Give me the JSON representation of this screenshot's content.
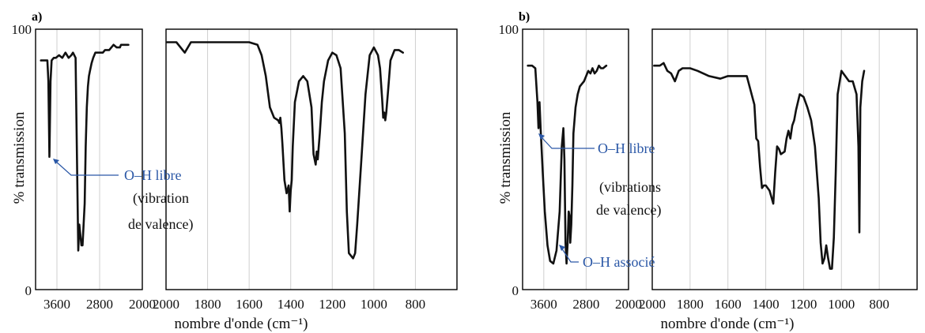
{
  "chart_data": [
    {
      "panel_label": "a)",
      "type": "line",
      "ylabel": "% transmission",
      "xlabel": "nombre d'onde (cm⁻¹)",
      "ylim": [
        0,
        100
      ],
      "y_ticks": [
        "100",
        "0"
      ],
      "grid": true,
      "segments": [
        {
          "xlim": [
            4000,
            2000
          ],
          "tick_labels": [
            "3600",
            "2800",
            "2000"
          ],
          "x": [
            3900,
            3850,
            3780,
            3760,
            3740,
            3720,
            3700,
            3660,
            3620,
            3560,
            3500,
            3440,
            3380,
            3330,
            3300,
            3250,
            3200,
            3180,
            3140,
            3120,
            3080,
            3060,
            3040,
            3020,
            3000,
            2980,
            2950,
            2920,
            2880,
            2850,
            2800,
            2780,
            2740,
            2700,
            2620,
            2540,
            2480,
            2420,
            2400,
            2340,
            2260
          ],
          "y": [
            88,
            88,
            88,
            80,
            51,
            80,
            88,
            89,
            89,
            90,
            89,
            91,
            89,
            90,
            91,
            89,
            15,
            25,
            17,
            17,
            33,
            55,
            70,
            78,
            82,
            84,
            87,
            89,
            91,
            91,
            91,
            91,
            91,
            92,
            92,
            94,
            93,
            93,
            94,
            94,
            94
          ]
        },
        {
          "xlim": [
            2000,
            600
          ],
          "tick_labels": [
            "2000",
            "1800",
            "1600",
            "1400",
            "1200",
            "1000",
            "800"
          ],
          "x": [
            1995,
            1950,
            1910,
            1880,
            1850,
            1800,
            1700,
            1600,
            1560,
            1540,
            1520,
            1500,
            1480,
            1460,
            1455,
            1450,
            1445,
            1440,
            1430,
            1420,
            1410,
            1405,
            1400,
            1395,
            1390,
            1380,
            1360,
            1340,
            1320,
            1300,
            1290,
            1280,
            1275,
            1270,
            1260,
            1250,
            1240,
            1220,
            1200,
            1180,
            1160,
            1140,
            1130,
            1120,
            1110,
            1100,
            1090,
            1080,
            1060,
            1040,
            1020,
            1000,
            980,
            970,
            960,
            955,
            950,
            945,
            940,
            930,
            920,
            900,
            880,
            860
          ],
          "y": [
            95,
            95,
            91,
            95,
            95,
            95,
            95,
            95,
            94,
            90,
            82,
            70,
            66,
            65,
            64,
            66,
            62,
            56,
            42,
            37,
            40,
            30,
            38,
            42,
            55,
            72,
            80,
            82,
            80,
            70,
            52,
            48,
            53,
            50,
            60,
            72,
            80,
            88,
            91,
            90,
            85,
            60,
            30,
            14,
            13,
            12,
            14,
            25,
            50,
            75,
            90,
            93,
            90,
            85,
            73,
            66,
            68,
            65,
            68,
            78,
            88,
            92,
            92,
            91
          ]
        }
      ],
      "annotations": [
        {
          "text": "O–H libre",
          "style": "blue"
        },
        {
          "lines": [
            "(vibration",
            "de valence)"
          ],
          "style": "black"
        }
      ]
    },
    {
      "panel_label": "b)",
      "type": "line",
      "ylabel": "% transmission",
      "xlabel": "nombre d'onde (cm⁻¹)",
      "ylim": [
        0,
        100
      ],
      "y_ticks": [
        "100",
        "0"
      ],
      "grid": true,
      "segments": [
        {
          "xlim": [
            4000,
            2000
          ],
          "tick_labels": [
            "3600",
            "2800",
            "2000"
          ],
          "x": [
            3900,
            3820,
            3760,
            3720,
            3700,
            3680,
            3660,
            3620,
            3580,
            3530,
            3480,
            3420,
            3360,
            3300,
            3260,
            3230,
            3210,
            3190,
            3170,
            3150,
            3130,
            3110,
            3100,
            3080,
            3060,
            3040,
            3000,
            2960,
            2920,
            2880,
            2840,
            2800,
            2780,
            2760,
            2720,
            2680,
            2640,
            2600,
            2560,
            2520,
            2480,
            2420
          ],
          "y": [
            86,
            86,
            85,
            72,
            62,
            72,
            62,
            45,
            30,
            17,
            11,
            10,
            15,
            30,
            55,
            62,
            50,
            18,
            10,
            18,
            30,
            28,
            18,
            25,
            40,
            60,
            70,
            75,
            78,
            79,
            80,
            82,
            83,
            84,
            83,
            85,
            83,
            84,
            86,
            85,
            85,
            86
          ]
        },
        {
          "xlim": [
            2000,
            600
          ],
          "tick_labels": [
            "2000",
            "1800",
            "1600",
            "1400",
            "1200",
            "1000",
            "800"
          ],
          "x": [
            1990,
            1960,
            1940,
            1920,
            1900,
            1880,
            1860,
            1840,
            1800,
            1760,
            1700,
            1640,
            1600,
            1560,
            1500,
            1460,
            1450,
            1440,
            1430,
            1420,
            1410,
            1400,
            1380,
            1360,
            1350,
            1340,
            1330,
            1320,
            1300,
            1290,
            1280,
            1270,
            1260,
            1250,
            1240,
            1220,
            1200,
            1180,
            1160,
            1140,
            1120,
            1110,
            1100,
            1090,
            1080,
            1070,
            1060,
            1050,
            1040,
            1030,
            1020,
            1000,
            990,
            980,
            960,
            940,
            920,
            910,
            905,
            900,
            890,
            880
          ],
          "y": [
            86,
            86,
            87,
            84,
            83,
            80,
            84,
            85,
            85,
            84,
            82,
            81,
            82,
            82,
            82,
            71,
            58,
            57,
            47,
            39,
            40,
            40,
            38,
            33,
            45,
            55,
            54,
            52,
            53,
            58,
            61,
            58,
            63,
            65,
            69,
            75,
            74,
            70,
            65,
            55,
            35,
            18,
            10,
            12,
            17,
            12,
            8,
            8,
            20,
            45,
            75,
            84,
            83,
            82,
            80,
            80,
            75,
            55,
            22,
            70,
            80,
            84
          ]
        }
      ],
      "annotations": [
        {
          "text": "O–H libre",
          "style": "blue"
        },
        {
          "lines": [
            "(vibrations",
            "de valence)"
          ],
          "style": "black"
        },
        {
          "text": "O–H associé",
          "style": "blue"
        }
      ]
    }
  ]
}
